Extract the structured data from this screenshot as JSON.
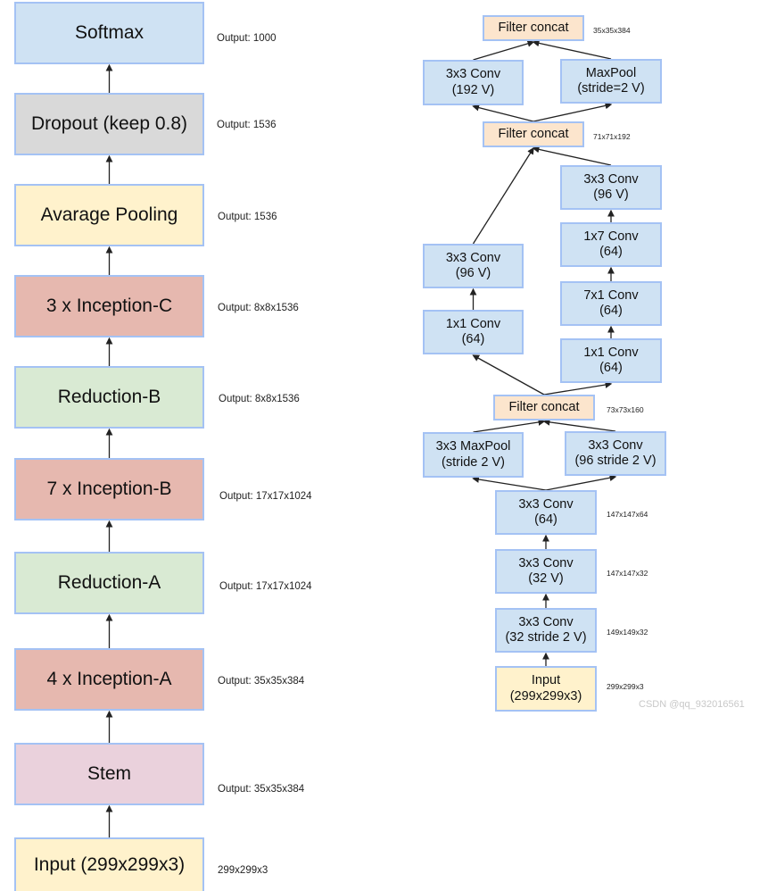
{
  "colors": {
    "blue": "#cfe2f3",
    "gray": "#d9d9d9",
    "yellow": "#fff2cc",
    "red": "#e6b8af",
    "green": "#d9ead3",
    "pink": "#ead1dc",
    "orange": "#fce5cd",
    "border": "#a4c2f4"
  },
  "left": [
    {
      "id": "softmax",
      "text": "Softmax",
      "color": "blue",
      "output": "Output: 1000"
    },
    {
      "id": "dropout",
      "text": "Dropout (keep 0.8)",
      "color": "gray",
      "output": "Output: 1536"
    },
    {
      "id": "avgpool",
      "text": "Avarage Pooling",
      "color": "yellow",
      "output": "Output: 1536"
    },
    {
      "id": "incC",
      "text": "3 x Inception-C",
      "color": "red",
      "output": "Output: 8x8x1536"
    },
    {
      "id": "redB",
      "text": "Reduction-B",
      "color": "green",
      "output": "Output: 8x8x1536"
    },
    {
      "id": "incB",
      "text": "7 x Inception-B",
      "color": "red",
      "output": "Output: 17x17x1024"
    },
    {
      "id": "redA",
      "text": "Reduction-A",
      "color": "green",
      "output": "Output: 17x17x1024"
    },
    {
      "id": "incA",
      "text": "4 x Inception-A",
      "color": "red",
      "output": "Output: 35x35x384"
    },
    {
      "id": "stem",
      "text": "Stem",
      "color": "pink",
      "output": "Output: 35x35x384"
    },
    {
      "id": "input",
      "text": "Input (299x299x3)",
      "color": "yellow",
      "output": "299x299x3"
    }
  ],
  "stem": [
    {
      "id": "fc1",
      "text": "Filter concat",
      "color": "orange",
      "output": "35x35x384"
    },
    {
      "id": "c192",
      "text": "3x3 Conv\n(192 V)",
      "color": "blue"
    },
    {
      "id": "mp2",
      "text": "MaxPool\n(stride=2 V)",
      "color": "blue"
    },
    {
      "id": "fc2",
      "text": "Filter concat",
      "color": "orange",
      "output": "71x71x192"
    },
    {
      "id": "r96",
      "text": "3x3 Conv\n(96 V)",
      "color": "blue"
    },
    {
      "id": "r17",
      "text": "1x7 Conv\n(64)",
      "color": "blue"
    },
    {
      "id": "r71",
      "text": "7x1 Conv\n(64)",
      "color": "blue"
    },
    {
      "id": "r11",
      "text": "1x1 Conv\n(64)",
      "color": "blue"
    },
    {
      "id": "l96",
      "text": "3x3 Conv\n(96 V)",
      "color": "blue"
    },
    {
      "id": "l11",
      "text": "1x1 Conv\n(64)",
      "color": "blue"
    },
    {
      "id": "fc3",
      "text": "Filter concat",
      "color": "orange",
      "output": "73x73x160"
    },
    {
      "id": "mp3",
      "text": "3x3 MaxPool\n(stride 2 V)",
      "color": "blue"
    },
    {
      "id": "c96s",
      "text": "3x3 Conv\n(96 stride 2 V)",
      "color": "blue"
    },
    {
      "id": "c64",
      "text": "3x3 Conv\n(64)",
      "color": "blue",
      "output": "147x147x64"
    },
    {
      "id": "c32",
      "text": "3x3 Conv\n(32 V)",
      "color": "blue",
      "output": "147x147x32"
    },
    {
      "id": "c32s",
      "text": "3x3 Conv\n(32 stride 2 V)",
      "color": "blue",
      "output": "149x149x32"
    },
    {
      "id": "sin",
      "text": "Input\n(299x299x3)",
      "color": "yellow",
      "output": "299x299x3"
    }
  ],
  "edges": [
    [
      "dropout",
      "softmax"
    ],
    [
      "avgpool",
      "dropout"
    ],
    [
      "incC",
      "avgpool"
    ],
    [
      "redB",
      "incC"
    ],
    [
      "incB",
      "redB"
    ],
    [
      "redA",
      "incB"
    ],
    [
      "incA",
      "redA"
    ],
    [
      "stem",
      "incA"
    ],
    [
      "input",
      "stem"
    ],
    [
      "c192",
      "fc1"
    ],
    [
      "mp2",
      "fc1"
    ],
    [
      "fc2",
      "c192"
    ],
    [
      "fc2",
      "mp2"
    ],
    [
      "l96",
      "fc2"
    ],
    [
      "r96",
      "fc2"
    ],
    [
      "r17",
      "r96"
    ],
    [
      "r71",
      "r17"
    ],
    [
      "r11",
      "r71"
    ],
    [
      "l11",
      "l96"
    ],
    [
      "fc3",
      "l11"
    ],
    [
      "fc3",
      "r11"
    ],
    [
      "mp3",
      "fc3"
    ],
    [
      "c96s",
      "fc3"
    ],
    [
      "c64",
      "mp3"
    ],
    [
      "c64",
      "c96s"
    ],
    [
      "c32",
      "c64"
    ],
    [
      "c32s",
      "c32"
    ],
    [
      "sin",
      "c32s"
    ]
  ],
  "watermark": "CSDN @qq_932016561"
}
